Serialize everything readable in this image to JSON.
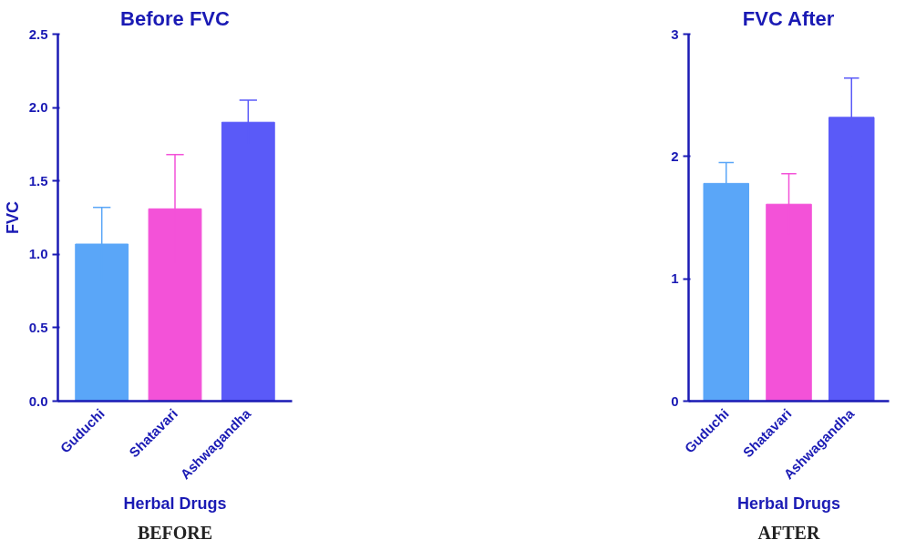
{
  "chart_data": [
    {
      "type": "bar",
      "title": "Before FVC",
      "xlabel": "Herbal Drugs",
      "ylabel": "FVC",
      "categories": [
        "Guduchi",
        "Shatavari",
        "Ashwagandha"
      ],
      "values": [
        1.07,
        1.31,
        1.9
      ],
      "errors": [
        0.25,
        0.37,
        0.15
      ],
      "colors": [
        "#5aa6f8",
        "#f352d8",
        "#5a5af8"
      ],
      "ylim": [
        0,
        2.5
      ],
      "yticks": [
        {
          "value": 0,
          "label": "0.0"
        },
        {
          "value": 0.5,
          "label": "0.5"
        },
        {
          "value": 1,
          "label": "1.0"
        },
        {
          "value": 1.5,
          "label": "1.5"
        },
        {
          "value": 2,
          "label": "2.0"
        },
        {
          "value": 2.5,
          "label": "2.5"
        }
      ],
      "grid": false,
      "annotations": [
        "BEFORE"
      ]
    },
    {
      "type": "bar",
      "title": "FVC After",
      "xlabel": "Herbal Drugs",
      "categories": [
        "Guduchi",
        "Shatavari",
        "Ashwagandha"
      ],
      "values": [
        1.78,
        1.61,
        2.32
      ],
      "errors": [
        0.17,
        0.25,
        0.32
      ],
      "colors": [
        "#5aa6f8",
        "#f352d8",
        "#5a5af8"
      ],
      "ylim": [
        0,
        3
      ],
      "yticks": [
        0,
        1,
        2,
        3
      ],
      "grid": false,
      "annotations": [
        "AFTER"
      ]
    }
  ]
}
